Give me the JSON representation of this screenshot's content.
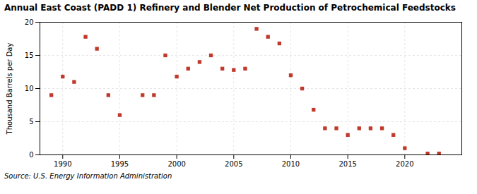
{
  "chart_data": {
    "type": "scatter",
    "title": "Annual East Coast (PADD 1) Refinery and Blender Net Production of Petrochemical Feedstocks",
    "ylabel": "Thousand Barrels per Day",
    "source": "Source: U.S. Energy Information Administration",
    "x": [
      1989,
      1990,
      1991,
      1992,
      1993,
      1994,
      1995,
      1997,
      1998,
      1999,
      2000,
      2001,
      2002,
      2003,
      2004,
      2005,
      2006,
      2007,
      2008,
      2009,
      2010,
      2011,
      2012,
      2013,
      2014,
      2015,
      2016,
      2017,
      2018,
      2019,
      2020,
      2022,
      2023
    ],
    "values": [
      9.0,
      11.8,
      11.0,
      17.8,
      16.0,
      9.0,
      6.0,
      9.0,
      9.0,
      15.0,
      11.8,
      13.0,
      14.0,
      15.0,
      13.0,
      12.8,
      13.0,
      19.0,
      17.8,
      16.8,
      12.0,
      10.0,
      6.8,
      4.0,
      4.0,
      3.0,
      4.0,
      4.0,
      4.0,
      3.0,
      1.0,
      0.2,
      0.2
    ],
    "color": "#c0392b",
    "marker": "square",
    "xlim": [
      1988,
      2025
    ],
    "ylim": [
      0,
      20
    ],
    "xticks": [
      1990,
      1995,
      2000,
      2005,
      2010,
      2015,
      2020
    ],
    "yticks": [
      0,
      5,
      10,
      15,
      20
    ],
    "grid": true
  }
}
